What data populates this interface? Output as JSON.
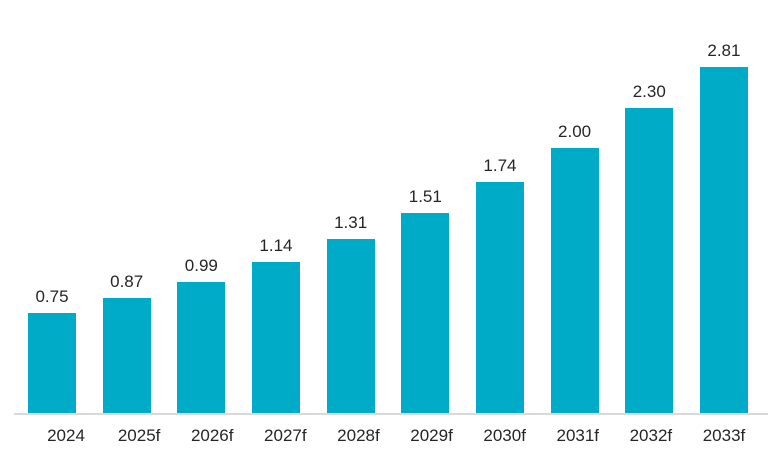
{
  "chart_data": {
    "type": "bar",
    "categories": [
      "2024",
      "2025f",
      "2026f",
      "2027f",
      "2028f",
      "2029f",
      "2030f",
      "2031f",
      "2032f",
      "2033f"
    ],
    "values": [
      0.75,
      0.87,
      0.99,
      1.14,
      1.31,
      1.51,
      1.74,
      2.0,
      2.3,
      2.81
    ],
    "value_labels": [
      "0.75",
      "0.87",
      "0.99",
      "1.14",
      "1.31",
      "1.51",
      "1.74",
      "2.00",
      "2.30",
      "2.81"
    ],
    "ylim": [
      0,
      2.81
    ],
    "bar_color": "#00ABC7",
    "value_label_color": "#262626",
    "tick_label_color": "#262626",
    "axis_line_color": "#D9D9D9",
    "background_color": "#FFFFFF",
    "grid": false,
    "legend": false
  }
}
